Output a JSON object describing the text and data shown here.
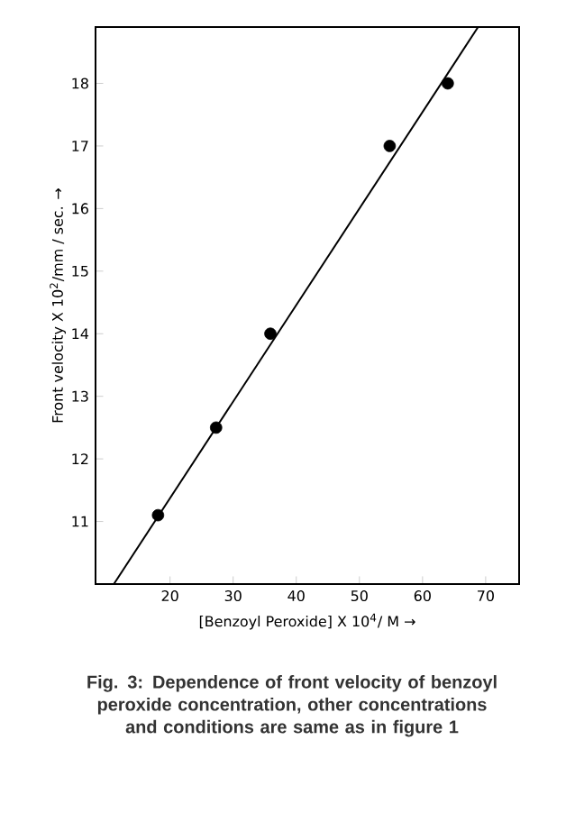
{
  "chart_data": {
    "type": "scatter",
    "xlabel": "[Benzoyl Peroxide] X 10$^{4}$/ M →",
    "ylabel": "Front velocity X 10$^{2}$/mm / sec. →",
    "annotations": [
      "Fig. 3: Dependence of front velocity of benzoyl peroxide concentration, other concentrations and conditions are same as in figure 1"
    ],
    "xlim": [
      8.2,
      75.3
    ],
    "ylim": [
      10.0,
      18.9
    ],
    "xticks": [
      20,
      30,
      40,
      50,
      60,
      70
    ],
    "yticks": [
      11,
      12,
      13,
      14,
      15,
      16,
      17,
      18
    ],
    "series": [
      {
        "marker": "circle",
        "color": "#000000",
        "x": [
          18.1,
          27.3,
          35.9,
          54.8,
          64.0
        ],
        "values": [
          11.1,
          12.5,
          14.0,
          17.0,
          18.0
        ]
      },
      {
        "type": "line",
        "marker": "none",
        "line_style": "solid",
        "color": "#000000",
        "x": [
          11.1,
          68.8
        ],
        "values": [
          10.0,
          18.9
        ]
      }
    ]
  }
}
